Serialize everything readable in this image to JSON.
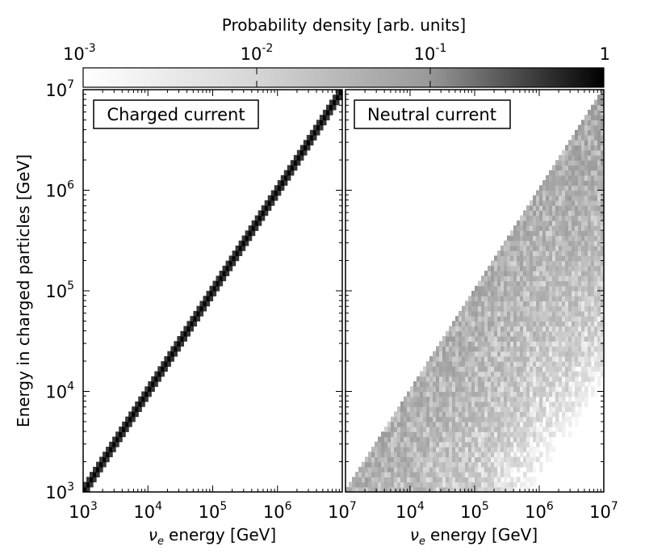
{
  "chart_data": [
    {
      "type": "heatmap",
      "title": "Charged current",
      "xlabel": "energy [GeV]",
      "xlabel_symbol": "ν",
      "xlabel_symbol_sub": "e",
      "ylabel": "Energy in charged particles [GeV]",
      "xscale": "log",
      "yscale": "log",
      "xlim": [
        1000,
        10000000
      ],
      "ylim": [
        1000,
        10000000
      ],
      "x_ticks": [
        "10",
        "10",
        "10",
        "10",
        "10"
      ],
      "x_tick_exponents": [
        "3",
        "4",
        "5",
        "6",
        "7"
      ],
      "y_ticks": [
        "10",
        "10",
        "10",
        "10",
        "10"
      ],
      "y_tick_exponents": [
        "3",
        "4",
        "5",
        "6",
        "7"
      ],
      "distribution": {
        "shape": "narrow diagonal band",
        "relation": "y ≈ x",
        "peak_density": 0.9,
        "band_halfwidth_decades": 0.03
      }
    },
    {
      "type": "heatmap",
      "title": "Neutral current",
      "xlabel": "energy [GeV]",
      "xlabel_symbol": "ν",
      "xlabel_symbol_sub": "e",
      "xscale": "log",
      "yscale": "log",
      "xlim": [
        1000,
        10000000
      ],
      "ylim": [
        1000,
        10000000
      ],
      "x_ticks": [
        "10",
        "10",
        "10",
        "10",
        "10"
      ],
      "x_tick_exponents": [
        "3",
        "4",
        "5",
        "6",
        "7"
      ],
      "distribution": {
        "shape": "triangular wedge below diagonal",
        "relation": "y <= x",
        "lower_edge": "y ≈ x / 30",
        "typical_density": 0.008
      }
    }
  ],
  "colorbar": {
    "label": "Probability density [arb. units]",
    "scale": "log",
    "range": [
      0.001,
      1
    ],
    "ticks": [
      "10",
      "10",
      "10",
      "1"
    ],
    "tick_exponents": [
      "-3",
      "-2",
      "-1",
      "0"
    ],
    "color_low": "#ffffff",
    "color_high": "#000000"
  }
}
